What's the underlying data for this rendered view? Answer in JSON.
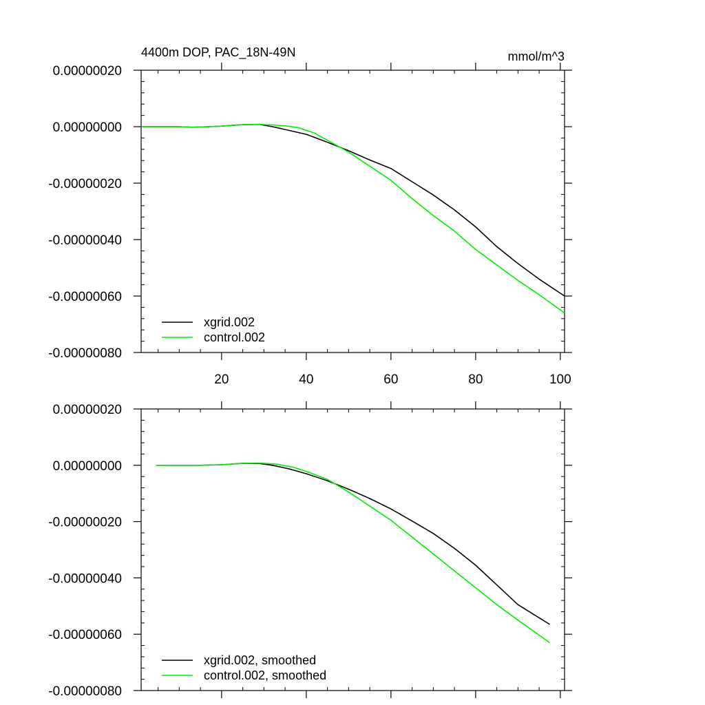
{
  "chart_data": [
    {
      "type": "line",
      "title": "4400m DOP, PAC_18N-49N",
      "units": "mmol/m^3",
      "xlabel": "",
      "ylabel": "",
      "xlim": [
        1,
        101
      ],
      "ylim": [
        -8e-07,
        2e-07
      ],
      "x_ticks": [
        20,
        40,
        60,
        80,
        100
      ],
      "x_tick_labels": [
        "20",
        "40",
        "60",
        "80",
        "100"
      ],
      "y_ticks": [
        2e-07,
        0,
        -2e-07,
        -4e-07,
        -6e-07,
        -8e-07
      ],
      "y_tick_labels": [
        "0.00000020",
        "0.00000000",
        "-0.00000020",
        "-0.00000040",
        "-0.00000060",
        "-0.00000080"
      ],
      "grid": false,
      "legend": "bottom-left",
      "series": [
        {
          "name": "xgrid.002",
          "color": "#000000",
          "x": [
            1,
            5,
            10,
            13,
            17,
            20,
            25,
            29,
            32,
            35,
            40,
            45,
            50,
            55,
            60,
            65,
            70,
            75,
            80,
            85,
            90,
            95,
            101
          ],
          "y": [
            0,
            0,
            0,
            -2e-09,
            0,
            2e-09,
            7e-09,
            8e-09,
            0,
            -1e-08,
            -2.7e-08,
            -5.5e-08,
            -8.5e-08,
            -1.18e-07,
            -1.48e-07,
            -1.95e-07,
            -2.42e-07,
            -2.95e-07,
            -3.55e-07,
            -4.25e-07,
            -4.85e-07,
            -5.4e-07,
            -6e-07
          ]
        },
        {
          "name": "control.002",
          "color": "#00ee00",
          "x": [
            1,
            5,
            10,
            13,
            17,
            20,
            25,
            29,
            32,
            35,
            38,
            42,
            45,
            50,
            55,
            60,
            65,
            70,
            75,
            80,
            85,
            90,
            95,
            101
          ],
          "y": [
            0,
            0,
            0,
            -2e-09,
            0,
            2e-09,
            7e-09,
            8e-09,
            6e-09,
            3e-09,
            -3e-09,
            -2.3e-08,
            -4.8e-08,
            -9e-08,
            -1.4e-07,
            -1.9e-07,
            -2.55e-07,
            -3.15e-07,
            -3.7e-07,
            -4.35e-07,
            -4.9e-07,
            -5.45e-07,
            -5.95e-07,
            -6.6e-07
          ]
        }
      ]
    },
    {
      "type": "line",
      "title": "",
      "xlabel": "",
      "ylabel": "",
      "xlim": [
        1,
        101
      ],
      "ylim": [
        -8e-07,
        2e-07
      ],
      "x_ticks": [
        20,
        40,
        60,
        80,
        100
      ],
      "y_ticks": [
        2e-07,
        0,
        -2e-07,
        -4e-07,
        -6e-07,
        -8e-07
      ],
      "y_tick_labels": [
        "0.00000020",
        "0.00000000",
        "-0.00000020",
        "-0.00000040",
        "-0.00000060",
        "-0.00000080"
      ],
      "grid": false,
      "legend": "bottom-left",
      "series": [
        {
          "name": "xgrid.002, smoothed",
          "color": "#000000",
          "x": [
            4.5,
            10,
            15,
            20,
            25,
            29,
            32,
            36,
            40,
            45,
            50,
            55,
            60,
            65,
            70,
            75,
            80,
            85,
            90,
            97.5
          ],
          "y": [
            0,
            0,
            0,
            2e-09,
            7e-09,
            6e-09,
            0,
            -1.3e-08,
            -3e-08,
            -5.5e-08,
            -8.5e-08,
            -1.18e-07,
            -1.55e-07,
            -1.98e-07,
            -2.42e-07,
            -2.95e-07,
            -3.55e-07,
            -4.25e-07,
            -4.95e-07,
            -5.65e-07
          ]
        },
        {
          "name": "control.002, smoothed",
          "color": "#00ee00",
          "x": [
            4.5,
            10,
            15,
            20,
            25,
            29,
            33,
            37,
            40,
            45,
            50,
            55,
            60,
            65,
            70,
            75,
            80,
            85,
            90,
            97.5
          ],
          "y": [
            0,
            0,
            0,
            2e-09,
            7e-09,
            8e-09,
            4e-09,
            -7e-09,
            -2.2e-08,
            -5e-08,
            -9.5e-08,
            -1.45e-07,
            -1.95e-07,
            -2.55e-07,
            -3.15e-07,
            -3.75e-07,
            -4.35e-07,
            -4.95e-07,
            -5.5e-07,
            -6.3e-07
          ]
        }
      ]
    }
  ]
}
